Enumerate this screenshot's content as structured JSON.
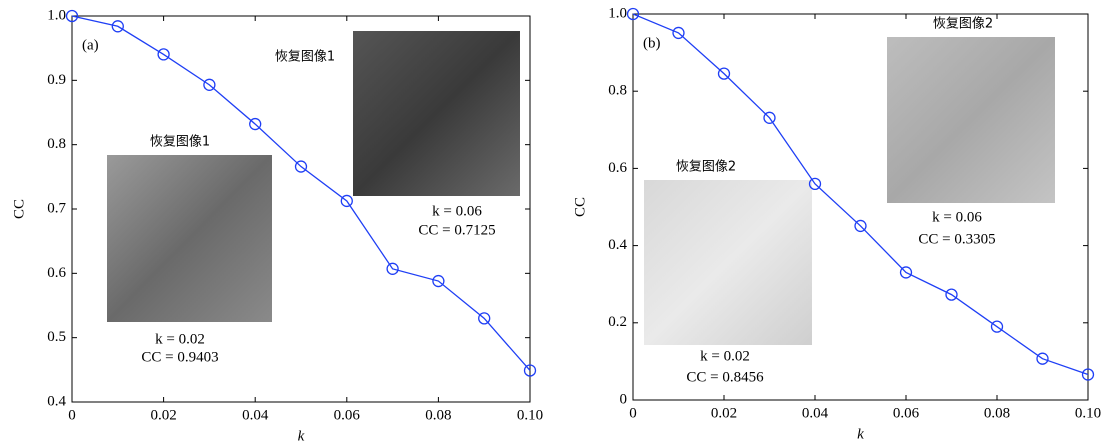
{
  "chart_data": [
    {
      "type": "line",
      "panel_label": "(a)",
      "x_label": "k",
      "y_label": "CC",
      "x": [
        0,
        0.01,
        0.02,
        0.03,
        0.04,
        0.05,
        0.06,
        0.07,
        0.08,
        0.09,
        0.1
      ],
      "series": [
        {
          "color": "#1f3ff5",
          "values": [
            1.0,
            0.984,
            0.9403,
            0.893,
            0.832,
            0.766,
            0.7125,
            0.607,
            0.588,
            0.53,
            0.449
          ]
        }
      ],
      "xlim": [
        0,
        0.1
      ],
      "ylim": [
        0.4,
        1.0
      ],
      "xticks": [
        0,
        0.02,
        0.04,
        0.06,
        0.08,
        {
          "value": 0.1,
          "label": "0.10"
        }
      ],
      "yticks": [
        0.4,
        0.5,
        0.6,
        0.7,
        0.8,
        0.9,
        {
          "value": 1,
          "label": "1.0"
        }
      ],
      "annotations": [
        {
          "title": "恢复图像1",
          "k_label": "k = 0.02",
          "cc_label": "CC = 0.9403"
        },
        {
          "title": "恢复图像1",
          "k_label": "k = 0.06",
          "cc_label": "CC = 0.7125"
        }
      ]
    },
    {
      "type": "line",
      "panel_label": "(b)",
      "x_label": "k",
      "y_label": "CC",
      "x": [
        0,
        0.01,
        0.02,
        0.03,
        0.04,
        0.05,
        0.06,
        0.07,
        0.08,
        0.09,
        0.1
      ],
      "series": [
        {
          "color": "#1f3ff5",
          "values": [
            1.0,
            0.951,
            0.8456,
            0.731,
            0.56,
            0.451,
            0.3305,
            0.273,
            0.19,
            0.107,
            0.066
          ]
        }
      ],
      "xlim": [
        0,
        0.1
      ],
      "ylim": [
        0,
        1.0
      ],
      "xticks": [
        0,
        0.02,
        0.04,
        0.06,
        0.08,
        {
          "value": 0.1,
          "label": "0.10"
        }
      ],
      "yticks": [
        0,
        0.2,
        0.4,
        0.6,
        0.8,
        {
          "value": 1,
          "label": "1.0"
        }
      ],
      "annotations": [
        {
          "title": "恢复图像2",
          "k_label": "k = 0.02",
          "cc_label": "CC = 0.8456"
        },
        {
          "title": "恢复图像2",
          "k_label": "k = 0.06",
          "cc_label": "CC = 0.3305"
        }
      ]
    }
  ]
}
